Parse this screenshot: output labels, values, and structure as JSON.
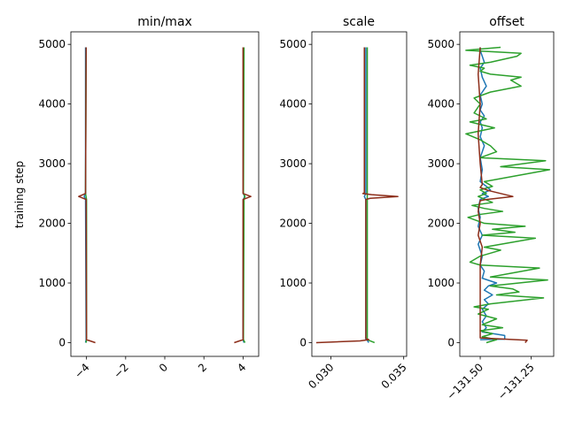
{
  "chart_data": [
    {
      "type": "line",
      "title": "min/max",
      "ylabel": "training step",
      "xlim": [
        -4.8,
        4.8
      ],
      "ylim": [
        -230,
        5210
      ],
      "xticks": [
        -4,
        -2,
        0,
        2,
        4
      ],
      "xtick_labels": [
        "−4",
        "−2",
        "0",
        "2",
        "4"
      ],
      "yticks": [
        0,
        1000,
        2000,
        3000,
        4000,
        5000
      ],
      "ytick_labels": [
        "0",
        "1000",
        "2000",
        "3000",
        "4000",
        "5000"
      ],
      "series": [
        {
          "color": "#1f77b4",
          "points": [
            [
              -4.05,
              0
            ],
            [
              -4.02,
              50
            ],
            [
              -4.05,
              2400
            ],
            [
              -4.12,
              2450
            ],
            [
              -4.05,
              2500
            ],
            [
              -4.05,
              4950
            ]
          ]
        },
        {
          "color": "#2ca02c",
          "points": [
            [
              -4.02,
              0
            ],
            [
              -4.0,
              50
            ],
            [
              -4.0,
              2400
            ],
            [
              -4.05,
              2500
            ],
            [
              -4.02,
              4950
            ]
          ]
        },
        {
          "color": "#1f77b4",
          "points": [
            [
              4.05,
              0
            ],
            [
              4.0,
              50
            ],
            [
              4.02,
              2400
            ],
            [
              4.08,
              2450
            ],
            [
              4.02,
              2500
            ],
            [
              4.02,
              4950
            ]
          ]
        },
        {
          "color": "#2ca02c",
          "points": [
            [
              4.1,
              0
            ],
            [
              4.02,
              50
            ],
            [
              4.05,
              2400
            ],
            [
              4.1,
              2450
            ],
            [
              4.02,
              2500
            ],
            [
              4.05,
              4950
            ]
          ]
        },
        {
          "color": "#8c2d19",
          "points": [
            [
              -3.55,
              0
            ],
            [
              -4.0,
              50
            ],
            [
              -4.02,
              2400
            ],
            [
              -4.4,
              2450
            ],
            [
              -4.05,
              2500
            ],
            [
              -4.02,
              4950
            ]
          ]
        },
        {
          "color": "#8c2d19",
          "points": [
            [
              3.55,
              0
            ],
            [
              4.0,
              50
            ],
            [
              4.0,
              2400
            ],
            [
              4.4,
              2450
            ],
            [
              4.0,
              2500
            ],
            [
              4.0,
              4950
            ]
          ]
        }
      ]
    },
    {
      "type": "line",
      "title": "scale",
      "xlim": [
        0.0287,
        0.0352
      ],
      "ylim": [
        -230,
        5210
      ],
      "xticks": [
        0.03,
        0.035
      ],
      "xtick_labels": [
        "0.030",
        "0.035"
      ],
      "yticks": [
        0,
        1000,
        2000,
        3000,
        4000,
        5000
      ],
      "ytick_labels": [
        "0",
        "1000",
        "2000",
        "3000",
        "4000",
        "5000"
      ],
      "series": [
        {
          "color": "#1f77b4",
          "points": [
            [
              0.0326,
              0
            ],
            [
              0.0325,
              40
            ],
            [
              0.0324,
              60
            ],
            [
              0.0324,
              2400
            ],
            [
              0.0323,
              2450
            ],
            [
              0.0324,
              2500
            ],
            [
              0.0324,
              4950
            ]
          ]
        },
        {
          "color": "#2ca02c",
          "points": [
            [
              0.033,
              0
            ],
            [
              0.0326,
              40
            ],
            [
              0.0325,
              60
            ],
            [
              0.0325,
              2400
            ],
            [
              0.0325,
              4950
            ]
          ]
        },
        {
          "color": "#8c2d19",
          "points": [
            [
              0.029,
              0
            ],
            [
              0.032,
              30
            ],
            [
              0.0326,
              50
            ],
            [
              0.0324,
              70
            ],
            [
              0.0324,
              2400
            ],
            [
              0.0327,
              2420
            ],
            [
              0.0346,
              2450
            ],
            [
              0.0328,
              2480
            ],
            [
              0.0322,
              2500
            ],
            [
              0.0323,
              2510
            ],
            [
              0.0323,
              4950
            ]
          ]
        }
      ]
    },
    {
      "type": "line",
      "title": "offset",
      "xlim": [
        -131.6,
        -131.14
      ],
      "ylim": [
        -230,
        5210
      ],
      "xticks": [
        -131.5,
        -131.25
      ],
      "xtick_labels": [
        "−131.50",
        "−131.25"
      ],
      "yticks": [
        0,
        1000,
        2000,
        3000,
        4000,
        5000
      ],
      "ytick_labels": [
        "0",
        "1000",
        "2000",
        "3000",
        "4000",
        "5000"
      ],
      "series": [
        {
          "color": "#1f77b4",
          "points": [
            [
              -131.5,
              50
            ],
            [
              -131.38,
              60
            ],
            [
              -131.38,
              120
            ],
            [
              -131.49,
              180
            ],
            [
              -131.47,
              250
            ],
            [
              -131.49,
              350
            ],
            [
              -131.47,
              450
            ],
            [
              -131.49,
              560
            ],
            [
              -131.46,
              650
            ],
            [
              -131.48,
              720
            ],
            [
              -131.44,
              800
            ],
            [
              -131.48,
              880
            ],
            [
              -131.46,
              950
            ],
            [
              -131.42,
              1000
            ],
            [
              -131.49,
              1080
            ],
            [
              -131.48,
              1200
            ],
            [
              -131.5,
              1300
            ],
            [
              -131.49,
              1450
            ],
            [
              -131.5,
              1550
            ],
            [
              -131.51,
              1650
            ],
            [
              -131.49,
              1800
            ],
            [
              -131.51,
              1950
            ],
            [
              -131.5,
              2100
            ],
            [
              -131.51,
              2250
            ],
            [
              -131.5,
              2400
            ],
            [
              -131.46,
              2450
            ],
            [
              -131.49,
              2500
            ],
            [
              -131.45,
              2560
            ],
            [
              -131.47,
              2620
            ],
            [
              -131.5,
              2700
            ],
            [
              -131.49,
              2900
            ],
            [
              -131.5,
              3100
            ],
            [
              -131.48,
              3300
            ],
            [
              -131.5,
              3450
            ],
            [
              -131.49,
              3600
            ],
            [
              -131.5,
              3700
            ],
            [
              -131.48,
              3800
            ],
            [
              -131.5,
              3900
            ],
            [
              -131.49,
              4000
            ],
            [
              -131.5,
              4150
            ],
            [
              -131.47,
              4300
            ],
            [
              -131.49,
              4450
            ],
            [
              -131.5,
              4600
            ],
            [
              -131.48,
              4700
            ],
            [
              -131.49,
              4800
            ],
            [
              -131.5,
              4900
            ],
            [
              -131.5,
              4950
            ]
          ]
        },
        {
          "color": "#2ca02c",
          "points": [
            [
              -131.47,
              0
            ],
            [
              -131.42,
              50
            ],
            [
              -131.49,
              100
            ],
            [
              -131.44,
              150
            ],
            [
              -131.5,
              200
            ],
            [
              -131.39,
              250
            ],
            [
              -131.49,
              300
            ],
            [
              -131.42,
              400
            ],
            [
              -131.51,
              480
            ],
            [
              -131.46,
              560
            ],
            [
              -131.53,
              600
            ],
            [
              -131.45,
              650
            ],
            [
              -131.19,
              750
            ],
            [
              -131.42,
              800
            ],
            [
              -131.31,
              850
            ],
            [
              -131.34,
              900
            ],
            [
              -131.45,
              950
            ],
            [
              -131.17,
              1050
            ],
            [
              -131.45,
              1100
            ],
            [
              -131.21,
              1250
            ],
            [
              -131.5,
              1300
            ],
            [
              -131.55,
              1350
            ],
            [
              -131.5,
              1450
            ],
            [
              -131.4,
              1550
            ],
            [
              -131.48,
              1600
            ],
            [
              -131.23,
              1750
            ],
            [
              -131.49,
              1800
            ],
            [
              -131.33,
              1850
            ],
            [
              -131.44,
              1900
            ],
            [
              -131.28,
              1950
            ],
            [
              -131.48,
              2000
            ],
            [
              -131.56,
              2100
            ],
            [
              -131.5,
              2150
            ],
            [
              -131.39,
              2200
            ],
            [
              -131.48,
              2250
            ],
            [
              -131.54,
              2300
            ],
            [
              -131.44,
              2350
            ],
            [
              -131.51,
              2450
            ],
            [
              -131.47,
              2500
            ],
            [
              -131.5,
              2560
            ],
            [
              -131.44,
              2620
            ],
            [
              -131.48,
              2700
            ],
            [
              -131.16,
              2900
            ],
            [
              -131.4,
              2950
            ],
            [
              -131.18,
              3050
            ],
            [
              -131.5,
              3100
            ],
            [
              -131.42,
              3200
            ],
            [
              -131.45,
              3300
            ],
            [
              -131.5,
              3400
            ],
            [
              -131.57,
              3500
            ],
            [
              -131.43,
              3600
            ],
            [
              -131.55,
              3700
            ],
            [
              -131.47,
              3750
            ],
            [
              -131.53,
              3850
            ],
            [
              -131.5,
              4000
            ],
            [
              -131.53,
              4100
            ],
            [
              -131.45,
              4200
            ],
            [
              -131.3,
              4300
            ],
            [
              -131.35,
              4400
            ],
            [
              -131.3,
              4450
            ],
            [
              -131.45,
              4500
            ],
            [
              -131.5,
              4550
            ],
            [
              -131.48,
              4600
            ],
            [
              -131.55,
              4650
            ],
            [
              -131.45,
              4700
            ],
            [
              -131.32,
              4800
            ],
            [
              -131.3,
              4850
            ],
            [
              -131.57,
              4900
            ],
            [
              -131.4,
              4950
            ]
          ]
        },
        {
          "color": "#8c2d19",
          "points": [
            [
              -131.28,
              0
            ],
            [
              -131.27,
              40
            ],
            [
              -131.5,
              80
            ],
            [
              -131.5,
              1300
            ],
            [
              -131.49,
              1600
            ],
            [
              -131.51,
              1800
            ],
            [
              -131.5,
              2000
            ],
            [
              -131.51,
              2200
            ],
            [
              -131.5,
              2380
            ],
            [
              -131.47,
              2400
            ],
            [
              -131.34,
              2450
            ],
            [
              -131.46,
              2550
            ],
            [
              -131.5,
              2600
            ],
            [
              -131.49,
              2650
            ],
            [
              -131.5,
              3000
            ],
            [
              -131.51,
              3500
            ],
            [
              -131.5,
              4000
            ],
            [
              -131.51,
              4500
            ],
            [
              -131.5,
              4950
            ]
          ]
        }
      ]
    }
  ]
}
